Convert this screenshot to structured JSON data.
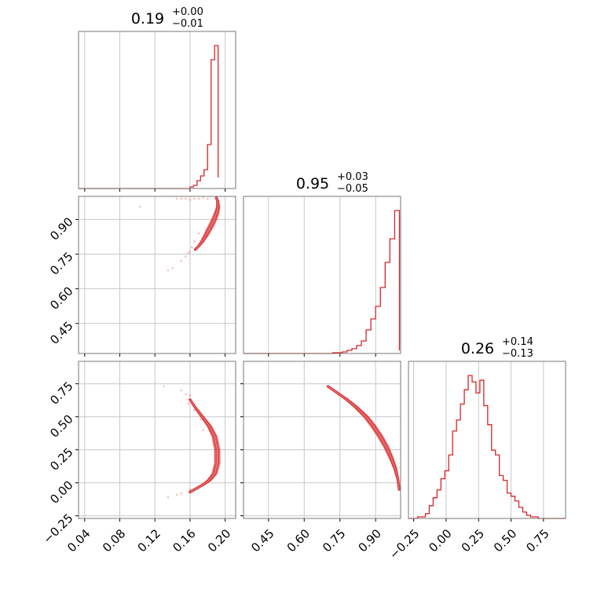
{
  "chart_data": {
    "type": "corner",
    "color": "#d62728",
    "grid": true,
    "parameters": [
      {
        "title": {
          "value": "0.19",
          "plus": "+0.00",
          "minus": "−0.01"
        },
        "range": [
          0.033,
          0.212
        ],
        "ticks": [
          0.04,
          0.08,
          0.12,
          0.16,
          0.2
        ],
        "tick_labels": [
          "0.04",
          "0.08",
          "0.12",
          "0.16",
          "0.20"
        ],
        "histogram": {
          "edges": [
            0.16,
            0.164,
            0.168,
            0.172,
            0.176,
            0.18,
            0.184,
            0.188,
            0.192
          ],
          "counts": [
            0.01,
            0.02,
            0.05,
            0.08,
            0.12,
            0.28,
            0.82,
            0.91,
            0.07
          ]
        }
      },
      {
        "title": {
          "value": "0.95",
          "plus": "+0.03",
          "minus": "−0.05"
        },
        "range": [
          0.345,
          1.005
        ],
        "ticks": [
          0.45,
          0.6,
          0.75,
          0.9
        ],
        "tick_labels": [
          "0.45",
          "0.60",
          "0.75",
          "0.90"
        ],
        "histogram": {
          "edges": [
            0.72,
            0.74,
            0.76,
            0.78,
            0.8,
            0.82,
            0.84,
            0.86,
            0.88,
            0.9,
            0.92,
            0.94,
            0.96,
            0.98,
            1.0
          ],
          "counts": [
            0.005,
            0.005,
            0.01,
            0.02,
            0.03,
            0.05,
            0.08,
            0.15,
            0.22,
            0.3,
            0.42,
            0.58,
            0.73,
            0.91,
            0.02
          ]
        }
      },
      {
        "title": {
          "value": "0.26",
          "plus": "+0.14",
          "minus": "−0.13"
        },
        "range": [
          -0.29,
          0.92
        ],
        "ticks": [
          -0.25,
          0.0,
          0.25,
          0.5,
          0.75
        ],
        "tick_labels": [
          "−0.25",
          "0.00",
          "0.25",
          "0.50",
          "0.75"
        ],
        "histogram": {
          "edges": [
            -0.25,
            -0.22,
            -0.19,
            -0.16,
            -0.13,
            -0.1,
            -0.07,
            -0.04,
            -0.01,
            0.02,
            0.05,
            0.08,
            0.11,
            0.14,
            0.17,
            0.2,
            0.23,
            0.26,
            0.29,
            0.32,
            0.35,
            0.38,
            0.41,
            0.44,
            0.47,
            0.5,
            0.53,
            0.56,
            0.59,
            0.62,
            0.65,
            0.68,
            0.71,
            0.74,
            0.77,
            0.8,
            0.83,
            0.86,
            0.89,
            0.92
          ],
          "counts": [
            0.0,
            0.01,
            0.01,
            0.03,
            0.08,
            0.13,
            0.18,
            0.25,
            0.3,
            0.4,
            0.55,
            0.62,
            0.72,
            0.81,
            0.9,
            0.86,
            0.79,
            0.87,
            0.71,
            0.59,
            0.43,
            0.4,
            0.27,
            0.24,
            0.16,
            0.14,
            0.11,
            0.07,
            0.04,
            0.02,
            0.01,
            0.01,
            0.0,
            0.0,
            0.0,
            0.0,
            0.0,
            0.0,
            0.0
          ]
        }
      }
    ],
    "pairs": [
      {
        "row": 1,
        "col": 0,
        "ylim": [
          0.32,
          1.0
        ],
        "contour_curve": [
          [
            0.19,
            0.995
          ],
          [
            0.1915,
            0.98
          ],
          [
            0.192,
            0.955
          ],
          [
            0.1905,
            0.93
          ],
          [
            0.188,
            0.905
          ],
          [
            0.185,
            0.88
          ],
          [
            0.1815,
            0.855
          ],
          [
            0.178,
            0.83
          ],
          [
            0.174,
            0.805
          ],
          [
            0.17,
            0.785
          ],
          [
            0.166,
            0.77
          ]
        ],
        "scatter": [
          [
            0.18,
            0.99
          ],
          [
            0.175,
            0.995
          ],
          [
            0.17,
            0.99
          ],
          [
            0.165,
            0.99
          ],
          [
            0.16,
            0.985
          ],
          [
            0.155,
            0.99
          ],
          [
            0.15,
            0.99
          ],
          [
            0.145,
            0.99
          ],
          [
            0.103,
            0.955
          ],
          [
            0.16,
            0.76
          ],
          [
            0.158,
            0.755
          ],
          [
            0.15,
            0.72
          ],
          [
            0.14,
            0.69
          ],
          [
            0.135,
            0.68
          ],
          [
            0.155,
            0.74
          ],
          [
            0.162,
            0.78
          ],
          [
            0.17,
            0.84
          ],
          [
            0.165,
            0.805
          ]
        ]
      },
      {
        "row": 2,
        "col": 0,
        "ylim": [
          -0.27,
          0.92
        ],
        "contour_curve": [
          [
            0.16,
            0.63
          ],
          [
            0.166,
            0.57
          ],
          [
            0.174,
            0.5
          ],
          [
            0.182,
            0.43
          ],
          [
            0.188,
            0.35
          ],
          [
            0.191,
            0.25
          ],
          [
            0.191,
            0.15
          ],
          [
            0.188,
            0.07
          ],
          [
            0.182,
            0.02
          ],
          [
            0.176,
            -0.01
          ],
          [
            0.168,
            -0.04
          ],
          [
            0.16,
            -0.07
          ]
        ],
        "scatter": [
          [
            0.13,
            0.73
          ],
          [
            0.15,
            0.7
          ],
          [
            0.155,
            0.67
          ],
          [
            0.16,
            0.66
          ],
          [
            0.158,
            0.6
          ],
          [
            0.165,
            0.55
          ],
          [
            0.17,
            0.55
          ],
          [
            0.172,
            0.48
          ],
          [
            0.15,
            -0.08
          ],
          [
            0.145,
            -0.09
          ],
          [
            0.135,
            -0.11
          ],
          [
            0.16,
            -0.05
          ],
          [
            0.175,
            0.4
          ]
        ]
      },
      {
        "row": 2,
        "col": 1,
        "ylim": [
          -0.27,
          0.92
        ],
        "contour_curve": [
          [
            0.7,
            0.73
          ],
          [
            0.74,
            0.68
          ],
          [
            0.78,
            0.63
          ],
          [
            0.82,
            0.57
          ],
          [
            0.86,
            0.5
          ],
          [
            0.89,
            0.43
          ],
          [
            0.92,
            0.35
          ],
          [
            0.945,
            0.27
          ],
          [
            0.965,
            0.19
          ],
          [
            0.982,
            0.11
          ],
          [
            0.993,
            0.03
          ],
          [
            0.999,
            -0.05
          ]
        ],
        "scatter": [
          [
            0.7,
            0.73
          ],
          [
            0.72,
            0.71
          ],
          [
            0.74,
            0.69
          ],
          [
            0.76,
            0.66
          ],
          [
            0.78,
            0.64
          ],
          [
            0.8,
            0.61
          ]
        ]
      }
    ]
  }
}
